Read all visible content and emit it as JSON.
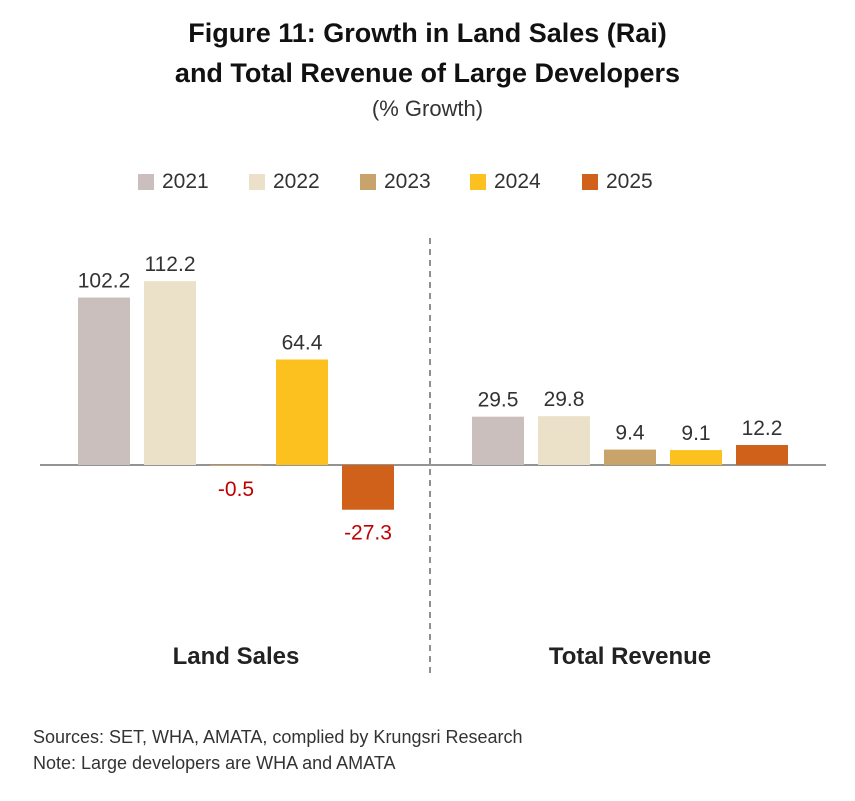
{
  "chart_data": {
    "type": "bar",
    "title_line1": "Figure 11: Growth in Land Sales (Rai)",
    "title_line2": "and Total Revenue of Large Developers",
    "subtitle": "(% Growth)",
    "categories": [
      "Land Sales",
      "Total Revenue"
    ],
    "series": [
      {
        "name": "2021",
        "color": "#cbbfbe",
        "values": [
          102.2,
          29.5
        ]
      },
      {
        "name": "2022",
        "color": "#ebe0c8",
        "values": [
          112.2,
          29.8
        ]
      },
      {
        "name": "2023",
        "color": "#c9a46a",
        "values": [
          -0.5,
          9.4
        ]
      },
      {
        "name": "2024",
        "color": "#fcc11f",
        "values": [
          64.4,
          9.1
        ]
      },
      {
        "name": "2025",
        "color": "#cf611b",
        "values": [
          -27.3,
          12.2
        ]
      }
    ],
    "labels": [
      [
        "102.2",
        "29.5"
      ],
      [
        "112.2",
        "29.8"
      ],
      [
        "-0.5",
        "9.4"
      ],
      [
        "64.4",
        "9.1"
      ],
      [
        "-27.3",
        "12.2"
      ]
    ],
    "negative_label_color": "#c00000",
    "positive_label_color": "#333333",
    "legend_position": "top",
    "grid": false,
    "ylim": [
      -50,
      120
    ]
  },
  "footer": {
    "sources": "Sources: SET, WHA, AMATA, complied by Krungsri Research",
    "note": "Note: Large developers are WHA and AMATA"
  }
}
